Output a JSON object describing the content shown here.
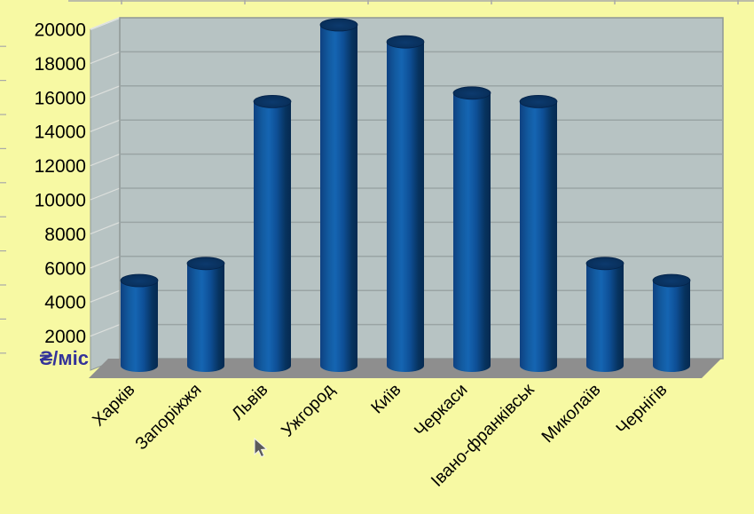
{
  "chart_data": {
    "type": "bar",
    "style": "3d-cylinder",
    "title": "",
    "categories": [
      "Харків",
      "Запоріжжя",
      "Львів",
      "Ужгород",
      "Київ",
      "Черкаси",
      "Івано-франківськ",
      "Миколаїв",
      "Чернігів"
    ],
    "values": [
      5000,
      6000,
      15500,
      20000,
      19000,
      16000,
      15500,
      6000,
      5000
    ],
    "xlabel": "",
    "ylabel": "₴/міс",
    "ylim": [
      0,
      20000
    ],
    "yticks": [
      2000,
      4000,
      6000,
      8000,
      10000,
      12000,
      14000,
      16000,
      18000,
      20000
    ],
    "grid": true,
    "legend": "none"
  },
  "colors": {
    "background": "#f7f9a3",
    "wall": "#b7c3c3",
    "wall_border": "#8f9896",
    "wall_grid": "#9aa4a4",
    "wall_grid_light": "#dcdfdc",
    "floor_shadow": "#8e8e8e",
    "bar_main": "#1565b2",
    "bar_dark": "#052950",
    "bar_top": "#0a3160",
    "axis_text": "#000000",
    "unit_label": "#333399",
    "edge_tick": "#a9a9a9"
  }
}
